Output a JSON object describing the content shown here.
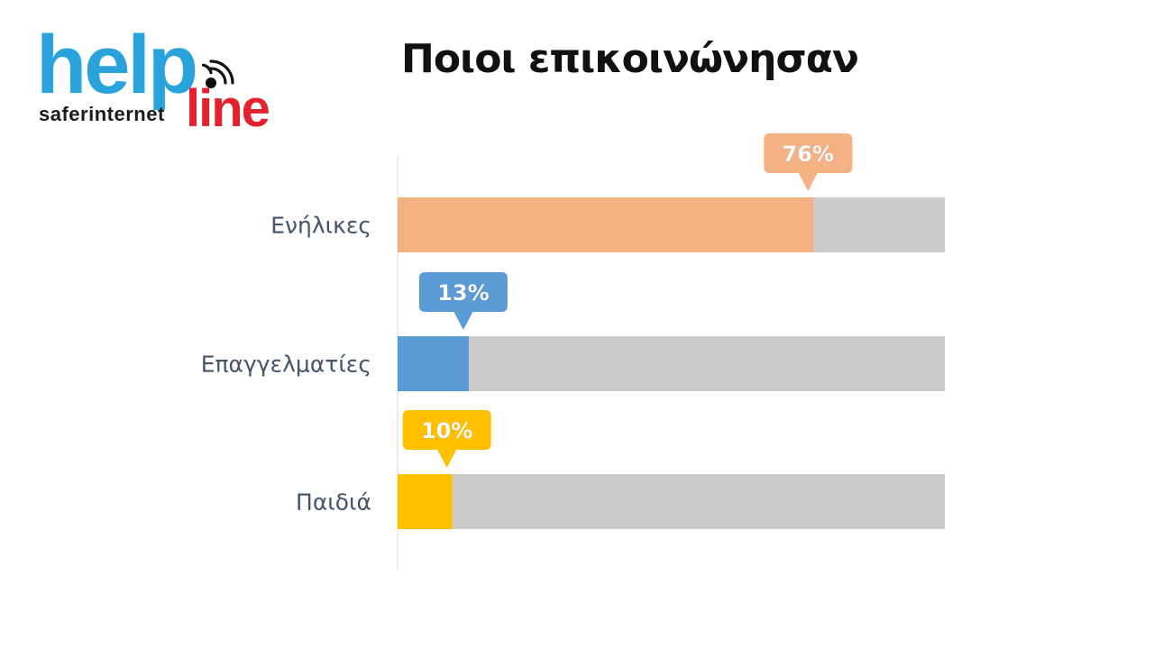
{
  "logo": {
    "help": "help",
    "safer": "saferinternet",
    "line": "line"
  },
  "slide": {
    "title": "Ποιοι επικοινώνησαν"
  },
  "colors": {
    "track": "#cbcbcb",
    "axis": "#d9d9d9",
    "label": "#44546a"
  },
  "chart_data": {
    "type": "bar",
    "orientation": "horizontal",
    "categories": [
      "Ενήλικες",
      "Επαγγελματίες",
      "Παιδιά"
    ],
    "values": [
      76,
      13,
      10
    ],
    "data_labels": [
      "76%",
      "13%",
      "10%"
    ],
    "bar_colors": [
      "#f4b183",
      "#5b9bd5",
      "#ffc000"
    ],
    "xlim": [
      0,
      100
    ],
    "grid": false,
    "legend": "none"
  }
}
